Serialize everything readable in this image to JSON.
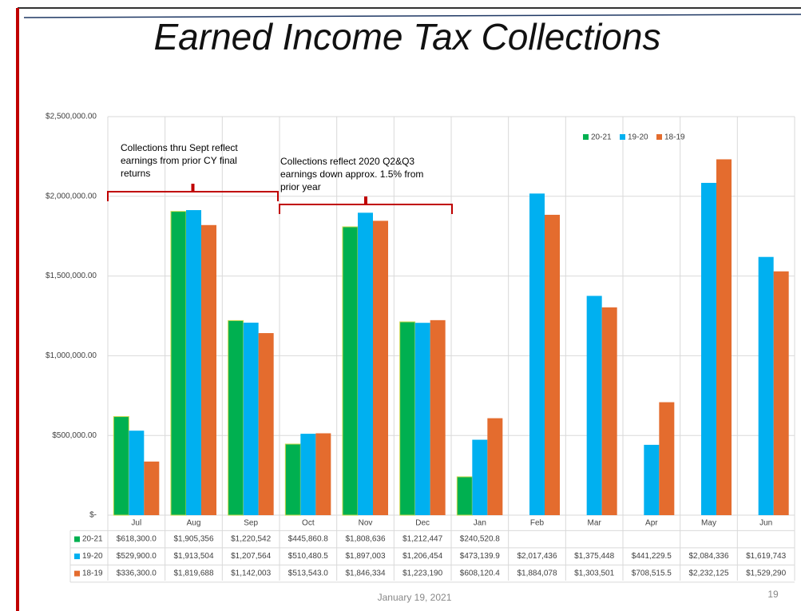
{
  "chart_data": {
    "type": "bar",
    "title": "Earned Income Tax Collections",
    "categories": [
      "Jul",
      "Aug",
      "Sep",
      "Oct",
      "Nov",
      "Dec",
      "Jan",
      "Feb",
      "Mar",
      "Apr",
      "May",
      "Jun"
    ],
    "series": [
      {
        "name": "20-21",
        "color": "#00b050",
        "values": [
          618300,
          1905356,
          1220542,
          445860.8,
          1808636,
          1212447,
          240520.8,
          null,
          null,
          null,
          null,
          null
        ],
        "value_labels": [
          "$618,300.0",
          "$1,905,356",
          "$1,220,542",
          "$445,860.8",
          "$1,808,636",
          "$1,212,447",
          "$240,520.8",
          null,
          null,
          null,
          null,
          null
        ]
      },
      {
        "name": "19-20",
        "color": "#00b0f0",
        "values": [
          529900,
          1913504,
          1207564,
          510480.5,
          1897003,
          1206454,
          473139.9,
          2017436,
          1375448,
          441229.5,
          2084336,
          1619743
        ],
        "value_labels": [
          "$529,900.0",
          "$1,913,504",
          "$1,207,564",
          "$510,480.5",
          "$1,897,003",
          "$1,206,454",
          "$473,139.9",
          "$2,017,436",
          "$1,375,448",
          "$441,229.5",
          "$2,084,336",
          "$1,619,743"
        ]
      },
      {
        "name": "18-19",
        "color": "#e46c2e",
        "values": [
          336300,
          1819688,
          1142003,
          513543.0,
          1846334,
          1223190,
          608120.4,
          1884078,
          1303501,
          708515.5,
          2232125,
          1529290
        ],
        "value_labels": [
          "$336,300.0",
          "$1,819,688",
          "$1,142,003",
          "$513,543.0",
          "$1,846,334",
          "$1,223,190",
          "$608,120.4",
          "$1,884,078",
          "$1,303,501",
          "$708,515.5",
          "$2,232,125",
          "$1,529,290"
        ]
      }
    ],
    "ylim": [
      0,
      2500000
    ],
    "yticks": [
      {
        "value": 0,
        "label": "$-"
      },
      {
        "value": 500000,
        "label": "$500,000.00"
      },
      {
        "value": 1000000,
        "label": "$1,000,000.00"
      },
      {
        "value": 1500000,
        "label": "$1,500,000.00"
      },
      {
        "value": 2000000,
        "label": "$2,000,000.00"
      },
      {
        "value": 2500000,
        "label": "$2,500,000.00"
      }
    ],
    "grid": true,
    "legend": "upper right",
    "annotations": [
      {
        "lines": [
          "Collections thru Sept reflect",
          "earnings from prior CY final",
          "returns"
        ]
      },
      {
        "lines": [
          "Collections reflect 2020 Q2&Q3",
          "earnings down approx. 1.5% from",
          "prior year"
        ]
      }
    ]
  },
  "footer": {
    "date": "January 19, 2021",
    "page": "19"
  }
}
